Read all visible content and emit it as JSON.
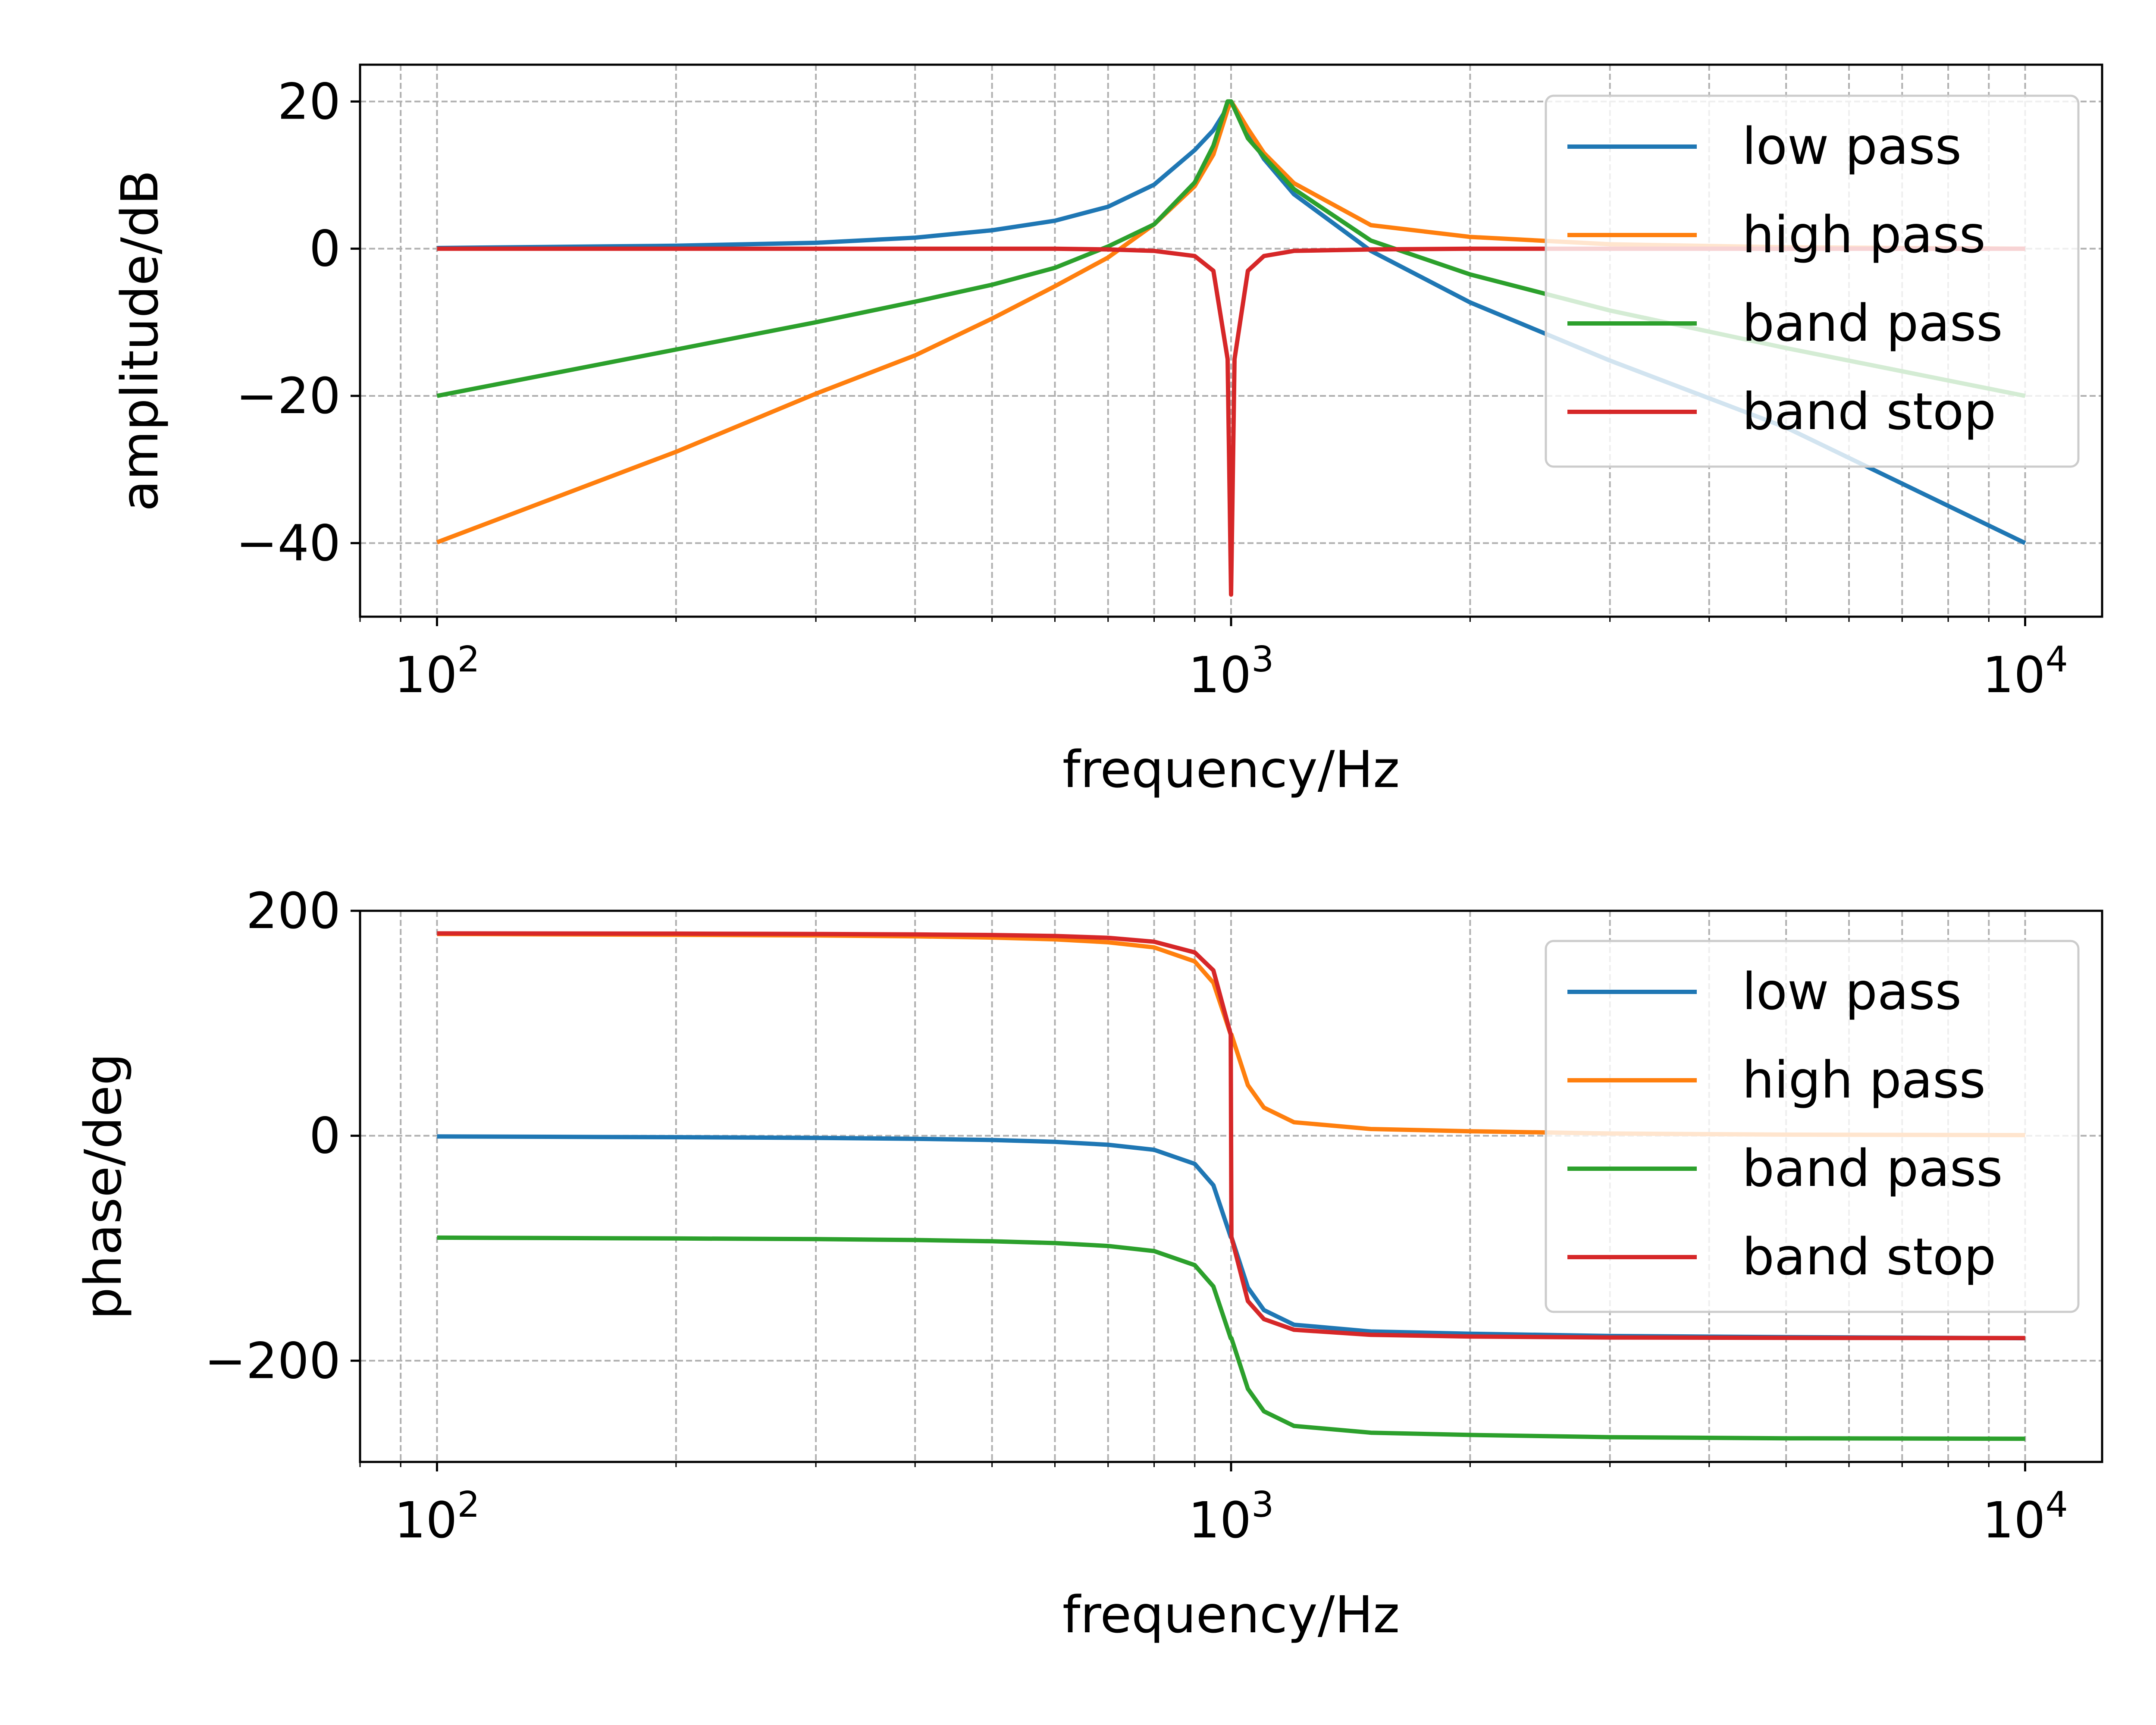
{
  "chart_data": [
    {
      "type": "line",
      "xlabel": "frequency/Hz",
      "ylabel": "amplitude/dB",
      "xscale": "log",
      "xlim": [
        80,
        12500
      ],
      "ylim": [
        -50,
        25
      ],
      "grid": true,
      "grid_style": "dashed",
      "legend_position": "top-right",
      "x_ticks": [
        {
          "value": 100,
          "base": "10",
          "exp": "2"
        },
        {
          "value": 1000,
          "base": "10",
          "exp": "3"
        },
        {
          "value": 10000,
          "base": "10",
          "exp": "4"
        }
      ],
      "y_ticks": [
        {
          "value": 20,
          "label": "20"
        },
        {
          "value": 0,
          "label": "0"
        },
        {
          "value": -20,
          "label": "−20"
        },
        {
          "value": -40,
          "label": "−40"
        }
      ],
      "x": [
        100,
        200,
        300,
        400,
        500,
        600,
        700,
        800,
        900,
        950,
        990,
        1000,
        1010,
        1050,
        1100,
        1200,
        1500,
        2000,
        3000,
        5000,
        10000
      ],
      "series": [
        {
          "name": "low pass",
          "color": "#1f77b4",
          "values": [
            0.1,
            0.4,
            0.8,
            1.5,
            2.5,
            3.8,
            5.7,
            8.7,
            13.4,
            16.1,
            19.2,
            20.0,
            19.2,
            15.8,
            12.2,
            7.4,
            -0.3,
            -7.3,
            -15.2,
            -24.3,
            -40.0
          ]
        },
        {
          "name": "high pass",
          "color": "#ff7f0e",
          "values": [
            -39.9,
            -27.6,
            -19.7,
            -14.5,
            -9.5,
            -5.1,
            -1.2,
            3.3,
            8.5,
            12.8,
            18.9,
            20.0,
            19.3,
            16.3,
            13.0,
            8.9,
            3.2,
            1.6,
            0.6,
            0.2,
            0.0
          ]
        },
        {
          "name": "band pass",
          "color": "#2ca02c",
          "values": [
            -20.0,
            -13.7,
            -10.0,
            -7.2,
            -4.9,
            -2.6,
            0.3,
            3.3,
            9.0,
            14.0,
            20.0,
            20.0,
            19.0,
            15.0,
            12.5,
            8.1,
            1.1,
            -3.5,
            -8.4,
            -13.5,
            -20.0
          ]
        },
        {
          "name": "band stop",
          "color": "#d62728",
          "values": [
            0.0,
            0.0,
            0.0,
            0.0,
            0.0,
            0.0,
            -0.1,
            -0.3,
            -1.0,
            -3.0,
            -15.0,
            -47.0,
            -15.0,
            -3.0,
            -1.0,
            -0.3,
            -0.1,
            0.0,
            0.0,
            0.0,
            0.0
          ]
        }
      ]
    },
    {
      "type": "line",
      "xlabel": "frequency/Hz",
      "ylabel": "phase/deg",
      "xscale": "log",
      "xlim": [
        80,
        12500
      ],
      "ylim": [
        -290,
        200
      ],
      "grid": true,
      "grid_style": "dashed",
      "legend_position": "top-right",
      "x_ticks": [
        {
          "value": 100,
          "base": "10",
          "exp": "2"
        },
        {
          "value": 1000,
          "base": "10",
          "exp": "3"
        },
        {
          "value": 10000,
          "base": "10",
          "exp": "4"
        }
      ],
      "y_ticks": [
        {
          "value": 200,
          "label": "200"
        },
        {
          "value": 0,
          "label": "0"
        },
        {
          "value": -200,
          "label": "−200"
        }
      ],
      "x": [
        100,
        200,
        300,
        400,
        500,
        600,
        700,
        800,
        900,
        950,
        999,
        1001,
        1050,
        1100,
        1200,
        1500,
        2000,
        3000,
        5000,
        10000
      ],
      "series": [
        {
          "name": "low pass",
          "color": "#1f77b4",
          "values": [
            -0.6,
            -1.3,
            -1.9,
            -2.7,
            -3.8,
            -5.4,
            -8.0,
            -12.5,
            -25.0,
            -44.0,
            -90.0,
            -90.0,
            -135.0,
            -155.0,
            -168.0,
            -174.0,
            -176.0,
            -178.0,
            -179.0,
            -180.0
          ]
        },
        {
          "name": "high pass",
          "color": "#ff7f0e",
          "values": [
            179.4,
            178.7,
            178.1,
            177.3,
            176.2,
            174.6,
            172.0,
            167.5,
            155.0,
            136.0,
            90.0,
            90.0,
            45.0,
            25.0,
            12.0,
            6.0,
            4.0,
            2.0,
            1.0,
            0.6
          ]
        },
        {
          "name": "band pass",
          "color": "#2ca02c",
          "values": [
            -90.6,
            -91.3,
            -91.9,
            -92.7,
            -93.8,
            -95.4,
            -98.0,
            -102.5,
            -115.0,
            -134.0,
            -180.0,
            -180.0,
            -225.0,
            -245.0,
            -258.0,
            -264.0,
            -266.0,
            -268.0,
            -269.0,
            -269.4
          ]
        },
        {
          "name": "band stop",
          "color": "#d62728",
          "values": [
            179.9,
            179.7,
            179.4,
            179.0,
            178.5,
            177.6,
            176.0,
            172.5,
            163.0,
            147.0,
            90.0,
            -90.0,
            -147.0,
            -163.0,
            -172.5,
            -177.0,
            -178.5,
            -179.4,
            -179.7,
            -179.9
          ]
        }
      ]
    }
  ]
}
